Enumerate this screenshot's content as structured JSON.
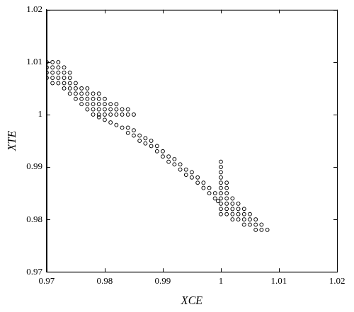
{
  "chart_data": {
    "type": "scatter",
    "x_label": "XCE",
    "y_label": "XTE",
    "x": [
      0.97,
      0.971,
      0.972,
      0.97,
      0.971,
      0.972,
      0.973,
      0.97,
      0.971,
      0.972,
      0.973,
      0.974,
      0.97,
      0.971,
      0.972,
      0.973,
      0.974,
      0.971,
      0.972,
      0.973,
      0.974,
      0.975,
      0.973,
      0.974,
      0.975,
      0.976,
      0.977,
      0.974,
      0.975,
      0.976,
      0.977,
      0.978,
      0.979,
      0.975,
      0.976,
      0.977,
      0.978,
      0.979,
      0.98,
      0.976,
      0.977,
      0.978,
      0.979,
      0.98,
      0.981,
      0.982,
      0.977,
      0.978,
      0.979,
      0.98,
      0.981,
      0.982,
      0.983,
      0.984,
      0.978,
      0.979,
      0.98,
      0.981,
      0.982,
      0.983,
      0.984,
      0.985,
      0.979,
      0.98,
      0.981,
      0.982,
      0.983,
      0.984,
      0.984,
      0.985,
      0.985,
      0.986,
      0.986,
      0.987,
      0.987,
      0.988,
      0.988,
      0.989,
      0.989,
      0.99,
      0.99,
      0.991,
      0.991,
      0.992,
      0.992,
      0.993,
      0.993,
      0.994,
      0.994,
      0.995,
      0.995,
      0.996,
      0.996,
      0.997,
      0.997,
      0.998,
      0.998,
      0.999,
      0.999,
      0.9995,
      1,
      1,
      1,
      1,
      1,
      1,
      1,
      1,
      1,
      1,
      1,
      1.001,
      1.001,
      1.001,
      1.001,
      1.001,
      1.001,
      1.001,
      1.002,
      1.002,
      1.002,
      1.002,
      1.002,
      1.003,
      1.003,
      1.003,
      1.003,
      1.004,
      1.004,
      1.004,
      1.004,
      1.005,
      1.005,
      1.005,
      1.006,
      1.006,
      1.006,
      1.007,
      1.007,
      1.008
    ],
    "values": [
      1.01,
      1.01,
      1.01,
      1.009,
      1.009,
      1.009,
      1.009,
      1.008,
      1.008,
      1.008,
      1.008,
      1.008,
      1.007,
      1.007,
      1.007,
      1.007,
      1.007,
      1.006,
      1.006,
      1.006,
      1.006,
      1.006,
      1.005,
      1.005,
      1.005,
      1.005,
      1.005,
      1.004,
      1.004,
      1.004,
      1.004,
      1.004,
      1.004,
      1.003,
      1.003,
      1.003,
      1.003,
      1.003,
      1.003,
      1.002,
      1.002,
      1.002,
      1.002,
      1.002,
      1.002,
      1.002,
      1.001,
      1.001,
      1.001,
      1.001,
      1.001,
      1.001,
      1.001,
      1.001,
      1,
      1,
      1,
      1,
      1,
      1,
      1,
      1,
      0.9995,
      0.999,
      0.9985,
      0.998,
      0.9975,
      0.9975,
      0.9965,
      0.997,
      0.996,
      0.996,
      0.995,
      0.9955,
      0.9945,
      0.995,
      0.994,
      0.994,
      0.993,
      0.993,
      0.992,
      0.992,
      0.991,
      0.9915,
      0.9905,
      0.9905,
      0.9895,
      0.9895,
      0.9885,
      0.989,
      0.988,
      0.988,
      0.987,
      0.987,
      0.986,
      0.986,
      0.985,
      0.985,
      0.984,
      0.9835,
      0.981,
      0.982,
      0.983,
      0.984,
      0.985,
      0.986,
      0.987,
      0.988,
      0.989,
      0.99,
      0.991,
      0.981,
      0.982,
      0.983,
      0.984,
      0.985,
      0.986,
      0.987,
      0.98,
      0.981,
      0.982,
      0.983,
      0.984,
      0.98,
      0.981,
      0.982,
      0.983,
      0.979,
      0.98,
      0.981,
      0.982,
      0.979,
      0.98,
      0.981,
      0.978,
      0.979,
      0.98,
      0.978,
      0.979,
      0.978
    ],
    "color": "#000000",
    "marker": "circle",
    "grid": false,
    "xlim": [
      0.97,
      1.02
    ],
    "xticks": [
      0.97,
      0.98,
      0.99,
      1,
      1.01,
      1.02
    ],
    "ylim": [
      0.97,
      1.02
    ],
    "yticks": [
      0.97,
      0.98,
      0.99,
      1,
      1.01,
      1.02
    ]
  }
}
